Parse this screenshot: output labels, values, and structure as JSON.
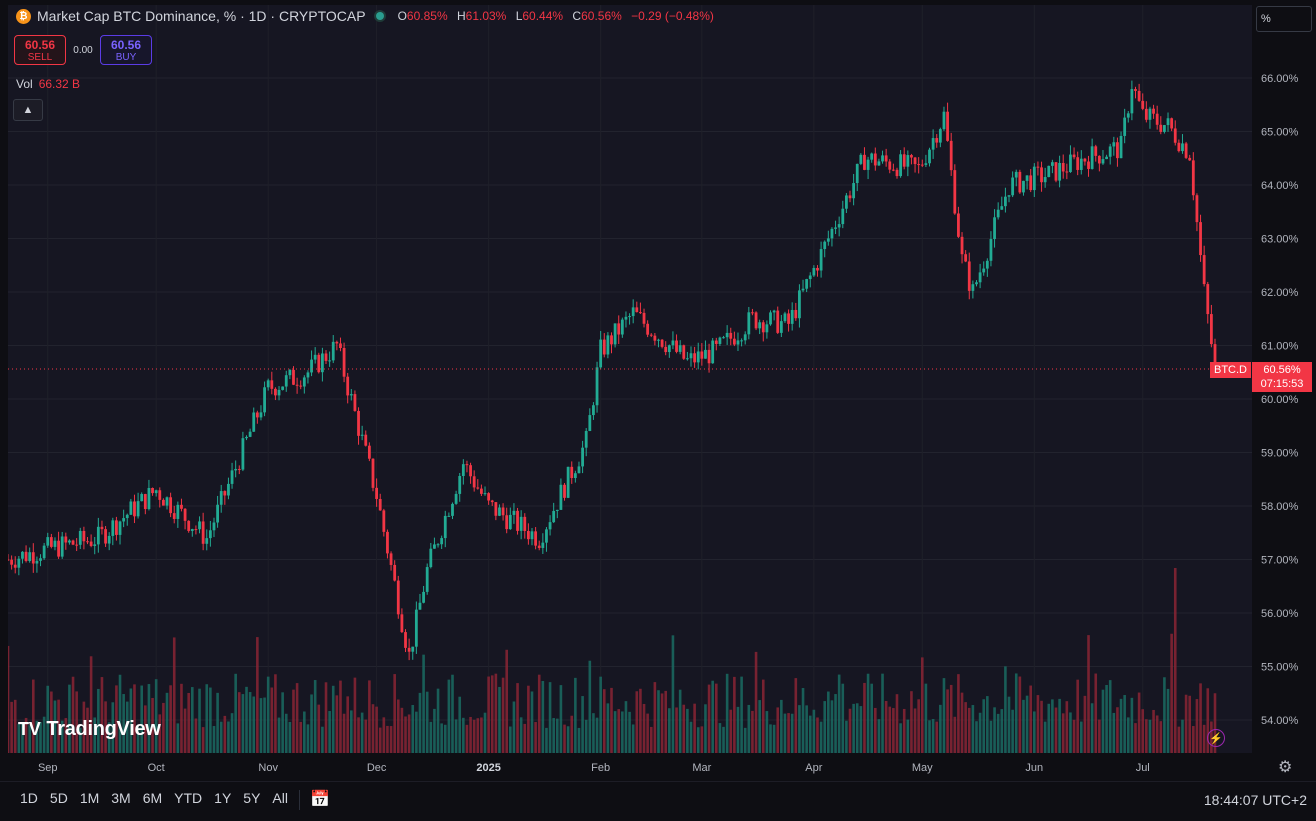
{
  "legend": {
    "title": "Market Cap BTC Dominance, % · 1D · CRYPTOCAP",
    "open_label": "O",
    "open": "60.85%",
    "high_label": "H",
    "high": "61.03%",
    "low_label": "L",
    "low": "60.44%",
    "close_label": "C",
    "close": "60.56%",
    "change": "−0.29 (−0.48%)"
  },
  "trade": {
    "sell_price": "60.56",
    "sell_label": "SELL",
    "spread": "0.00",
    "buy_price": "60.56",
    "buy_label": "BUY"
  },
  "volume": {
    "label": "Vol",
    "value": "66.32 B"
  },
  "watermark": "TradingView",
  "unit": "%",
  "price_tag": {
    "symbol": "BTC.D",
    "price": "60.56%",
    "countdown": "07:15:53"
  },
  "bottom": {
    "ranges": [
      "1D",
      "5D",
      "1M",
      "3M",
      "6M",
      "YTD",
      "1Y",
      "5Y",
      "All"
    ],
    "clock": "18:44:07 UTC+2"
  },
  "colors": {
    "up": "#22ab94",
    "down": "#f23645",
    "bg": "#161622"
  },
  "chart_data": {
    "type": "line",
    "y_ticks": [
      "66.00%",
      "65.00%",
      "64.00%",
      "63.00%",
      "62.00%",
      "61.00%",
      "60.00%",
      "59.00%",
      "58.00%",
      "57.00%",
      "56.00%",
      "55.00%",
      "54.00%"
    ],
    "x_ticks": [
      "Sep",
      "Oct",
      "Nov",
      "Dec",
      "2025",
      "Feb",
      "Mar",
      "Apr",
      "May",
      "Jun",
      "Jul"
    ],
    "ylim": [
      53.4,
      66.6
    ],
    "x_dates": [
      "2024-08-21",
      "2024-09-01",
      "2024-09-15",
      "2024-10-01",
      "2024-10-15",
      "2024-11-01",
      "2024-11-12",
      "2024-11-20",
      "2024-12-01",
      "2024-12-10",
      "2024-12-15",
      "2024-12-25",
      "2025-01-01",
      "2025-01-15",
      "2025-01-28",
      "2025-02-01",
      "2025-02-10",
      "2025-02-25",
      "2025-03-05",
      "2025-03-15",
      "2025-03-25",
      "2025-04-05",
      "2025-04-15",
      "2025-04-30",
      "2025-05-07",
      "2025-05-12",
      "2025-05-15",
      "2025-05-25",
      "2025-06-05",
      "2025-06-15",
      "2025-06-25",
      "2025-06-28",
      "2025-07-01",
      "2025-07-08",
      "2025-07-14",
      "2025-07-18",
      "2025-07-21"
    ],
    "close": [
      57.0,
      57.2,
      57.4,
      58.3,
      57.4,
      60.2,
      60.5,
      61.0,
      58.2,
      55.2,
      56.8,
      58.8,
      58.0,
      57.4,
      59.2,
      60.9,
      61.6,
      60.7,
      60.9,
      61.5,
      61.4,
      63.0,
      64.5,
      64.3,
      65.3,
      62.6,
      62.0,
      64.0,
      64.2,
      64.5,
      64.7,
      65.9,
      65.3,
      65.1,
      64.6,
      62.0,
      60.56
    ],
    "volume_max": 56.9
  }
}
